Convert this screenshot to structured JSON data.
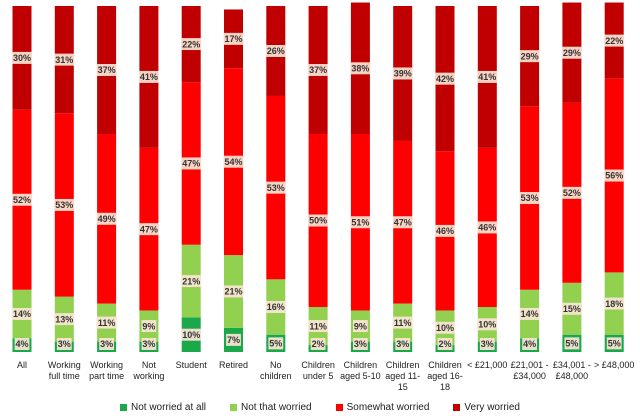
{
  "chart_data": {
    "type": "bar",
    "stacked": true,
    "percent": true,
    "categories": [
      [
        "All"
      ],
      [
        "Working",
        "full time"
      ],
      [
        "Working",
        "part time"
      ],
      [
        "Not",
        "working"
      ],
      [
        "Student"
      ],
      [
        "Retired"
      ],
      [
        "No",
        "children"
      ],
      [
        "Children",
        "under 5"
      ],
      [
        "Children",
        "aged 5-10"
      ],
      [
        "Children",
        "aged 11-",
        "15"
      ],
      [
        "Children",
        "aged 16-",
        "18"
      ],
      [
        "< £21,000"
      ],
      [
        "£21,001 -",
        "£34,000"
      ],
      [
        "£34,001 -",
        "£48,000"
      ],
      [
        "> £48,000"
      ]
    ],
    "series": [
      {
        "name": "Not worried at all",
        "color": "#1aa84a",
        "values": [
          4,
          3,
          3,
          3,
          10,
          7,
          5,
          2,
          3,
          3,
          2,
          3,
          4,
          5,
          5
        ]
      },
      {
        "name": "Not that worried",
        "color": "#92d050",
        "values": [
          14,
          13,
          11,
          9,
          21,
          21,
          16,
          11,
          9,
          11,
          10,
          10,
          14,
          15,
          18
        ]
      },
      {
        "name": "Somewhat worried",
        "color": "#ff0000",
        "values": [
          52,
          53,
          49,
          47,
          47,
          54,
          53,
          50,
          51,
          47,
          46,
          46,
          53,
          52,
          56
        ]
      },
      {
        "name": "Very worried",
        "color": "#c00000",
        "values": [
          30,
          31,
          37,
          41,
          22,
          17,
          26,
          37,
          38,
          39,
          42,
          41,
          29,
          29,
          22
        ]
      }
    ],
    "label_suffix": "%",
    "ylim": [
      0,
      100
    ],
    "legend_position": "bottom"
  }
}
